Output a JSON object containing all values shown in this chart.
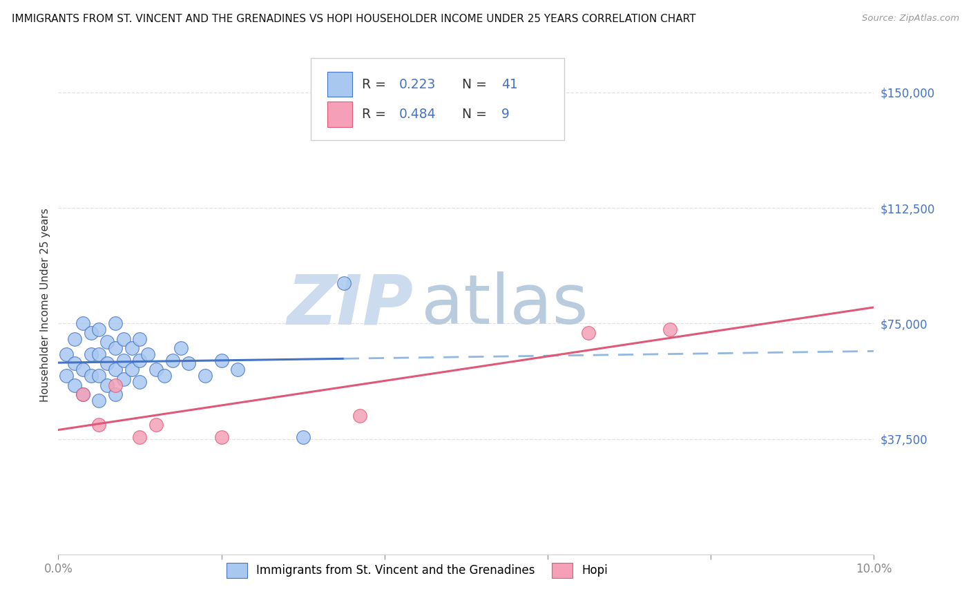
{
  "title": "IMMIGRANTS FROM ST. VINCENT AND THE GRENADINES VS HOPI HOUSEHOLDER INCOME UNDER 25 YEARS CORRELATION CHART",
  "source": "Source: ZipAtlas.com",
  "ylabel": "Householder Income Under 25 years",
  "legend_label1": "Immigrants from St. Vincent and the Grenadines",
  "legend_label2": "Hopi",
  "R1": 0.223,
  "N1": 41,
  "R2": 0.484,
  "N2": 9,
  "xlim": [
    0.0,
    0.1
  ],
  "ylim": [
    0,
    162000
  ],
  "yticks": [
    37500,
    75000,
    112500,
    150000
  ],
  "ytick_labels": [
    "$37,500",
    "$75,000",
    "$112,500",
    "$150,000"
  ],
  "xticks": [
    0.0,
    0.02,
    0.04,
    0.06,
    0.08,
    0.1
  ],
  "xtick_labels": [
    "0.0%",
    "",
    "",
    "",
    "",
    "10.0%"
  ],
  "color_blue": "#a8c8f0",
  "color_pink": "#f5a0b8",
  "line_blue": "#4472c4",
  "line_pink": "#e05878",
  "line_blue_ext": "#90b8e0",
  "blue_x": [
    0.001,
    0.001,
    0.002,
    0.002,
    0.002,
    0.003,
    0.003,
    0.003,
    0.004,
    0.004,
    0.004,
    0.005,
    0.005,
    0.005,
    0.005,
    0.006,
    0.006,
    0.006,
    0.007,
    0.007,
    0.007,
    0.007,
    0.008,
    0.008,
    0.008,
    0.009,
    0.009,
    0.01,
    0.01,
    0.01,
    0.011,
    0.012,
    0.013,
    0.014,
    0.015,
    0.016,
    0.018,
    0.02,
    0.022,
    0.03,
    0.035
  ],
  "blue_y": [
    58000,
    65000,
    55000,
    62000,
    70000,
    52000,
    60000,
    75000,
    58000,
    65000,
    72000,
    50000,
    58000,
    65000,
    73000,
    55000,
    62000,
    69000,
    52000,
    60000,
    67000,
    75000,
    57000,
    63000,
    70000,
    60000,
    67000,
    56000,
    63000,
    70000,
    65000,
    60000,
    58000,
    63000,
    67000,
    62000,
    58000,
    63000,
    60000,
    38000,
    88000
  ],
  "pink_x": [
    0.003,
    0.005,
    0.007,
    0.01,
    0.012,
    0.02,
    0.037,
    0.065,
    0.075
  ],
  "pink_y": [
    52000,
    42000,
    55000,
    38000,
    42000,
    38000,
    45000,
    72000,
    73000
  ],
  "watermark_zip_color": "#c8daf0",
  "watermark_atlas_color": "#c0d4ec",
  "background_color": "#ffffff",
  "grid_color": "#e0e0e0",
  "title_fontsize": 11,
  "tick_fontsize": 12,
  "scatter_size": 200
}
